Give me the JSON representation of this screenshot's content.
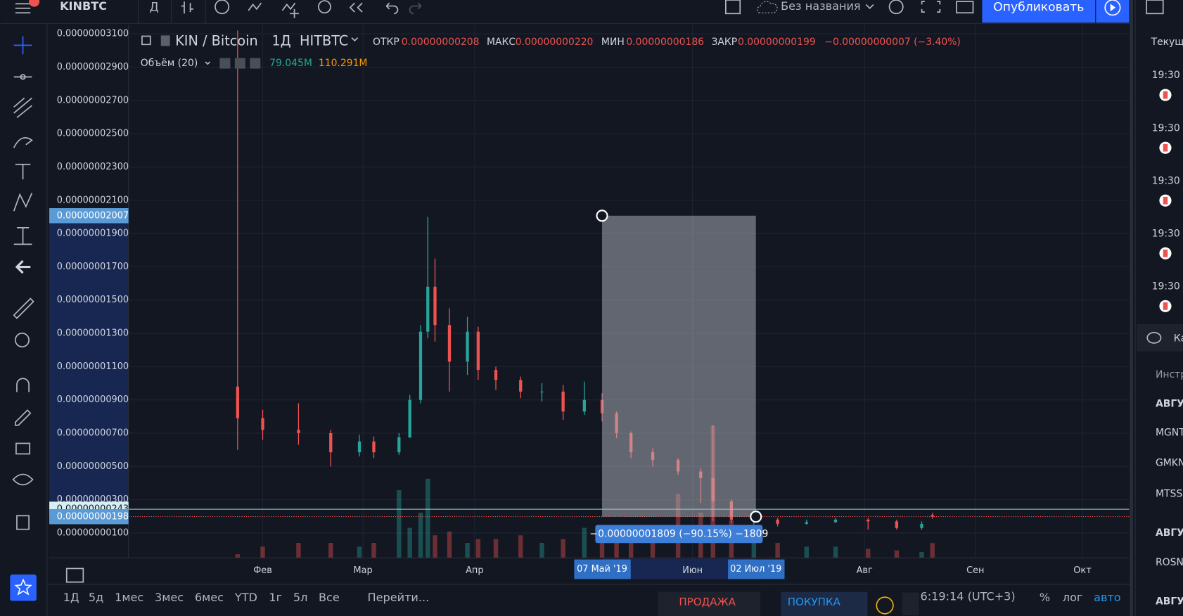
{
  "toolbar": {
    "symbol": "KINBTC",
    "interval": "Д",
    "layout_name": "Без названия",
    "publish": "Опубликовать"
  },
  "sidebar": {
    "header": "Текущ",
    "events": [
      "19:30",
      "19:30",
      "19:30",
      "19:30",
      "19:30"
    ],
    "section": "Ка",
    "column": "Инстр",
    "list": [
      "АВГУ",
      "MGNT",
      "GMKN",
      "MTSS",
      "АВГУ",
      "ROSN",
      "АВГУ"
    ]
  },
  "bottom_bar": {
    "ranges": [
      "1Д",
      "5д",
      "1мес",
      "3мес",
      "6мес",
      "YTD",
      "1г",
      "5л",
      "Все"
    ],
    "goto": "Перейти...",
    "sell": "ПРОДАЖА",
    "buy": "ПОКУПКА",
    "clock": "6:19:14 (UTC+3)",
    "percent": "%",
    "log": "лог",
    "auto": "авто"
  },
  "chart_data": {
    "type": "candlestick",
    "symbol": "KIN / Bitcoin",
    "interval": "1Д",
    "exchange": "HITBTC",
    "legend": {
      "open_label": "ОТКР",
      "open": "0.00000000208",
      "high_label": "МАКС",
      "high": "0.00000000220",
      "low_label": "МИН",
      "low": "0.00000000186",
      "close_label": "ЗАКР",
      "close": "0.00000000199",
      "change": "−0.00000000007 (−3.40%)"
    },
    "volume_label": "Объём (20)",
    "volume_value": "79.045M",
    "volume_ma": "110.291M",
    "x": [
      "2019-01-25",
      "2019-02-01",
      "2019-02-11",
      "2019-02-20",
      "2019-02-28",
      "2019-03-04",
      "2019-03-11",
      "2019-03-14",
      "2019-03-17",
      "2019-03-19",
      "2019-03-21",
      "2019-03-25",
      "2019-03-30",
      "2019-04-02",
      "2019-04-07",
      "2019-04-14",
      "2019-04-20",
      "2019-04-26",
      "2019-05-02",
      "2019-05-07",
      "2019-05-11",
      "2019-05-15",
      "2019-05-21",
      "2019-05-28",
      "2019-06-05",
      "2019-06-11",
      "2019-06-20",
      "2019-07-01",
      "2019-07-08",
      "2019-07-16",
      "2019-07-24",
      "2019-08-02",
      "2019-08-10",
      "2019-08-17",
      "2019-08-20"
    ],
    "open": [
      9.8e-09,
      7.9e-09,
      7.2e-09,
      7e-09,
      5.85e-09,
      6.5e-09,
      5.85e-09,
      6.75e-09,
      9e-09,
      1.31e-08,
      1.58e-08,
      1.35e-08,
      1.13e-08,
      1.31e-08,
      1.08e-08,
      1.02e-08,
      9.5e-09,
      9.5e-09,
      8.3e-09,
      9e-09,
      8.2e-09,
      7e-09,
      5.85e-09,
      5.4e-09,
      4.7e-09,
      4.3e-09,
      2.9e-09,
      1.8e-09,
      1.8e-09,
      1.55e-09,
      1.65e-09,
      1.8e-09,
      1.7e-09,
      1.3e-09,
      2.08e-09
    ],
    "high": [
      3.12e-08,
      8.4e-09,
      8.8e-09,
      7.2e-09,
      6.9e-09,
      6.8e-09,
      7e-09,
      9.3e-09,
      1.35e-08,
      2e-08,
      1.75e-08,
      1.45e-08,
      1.4e-08,
      1.34e-08,
      1.1e-08,
      1.04e-08,
      1e-08,
      9.9e-09,
      1.01e-08,
      9.4e-09,
      8.3e-09,
      7.1e-09,
      6.1e-09,
      5.5e-09,
      4.9e-09,
      7.5e-09,
      3e-09,
      2.2e-09,
      1.9e-09,
      1.8e-09,
      1.9e-09,
      1.9e-09,
      1.8e-09,
      1.7e-09,
      2.2e-09
    ],
    "low": [
      6e-09,
      6.6e-09,
      6.3e-09,
      5e-09,
      5.6e-09,
      5.5e-09,
      5.7e-09,
      6.7e-09,
      8.8e-09,
      1.27e-08,
      1.25e-08,
      9.5e-09,
      1.05e-08,
      1.02e-08,
      9.6e-09,
      9.1e-09,
      8.9e-09,
      7.8e-09,
      8.1e-09,
      7.7e-09,
      6.7e-09,
      5.5e-09,
      5e-09,
      4.5e-09,
      2.8e-09,
      1.7e-09,
      1.6e-09,
      1.5e-09,
      1.4e-09,
      1.5e-09,
      1.6e-09,
      1.2e-09,
      1.2e-09,
      1.2e-09,
      1.86e-09
    ],
    "close": [
      7.9e-09,
      7.2e-09,
      7e-09,
      5.85e-09,
      6.5e-09,
      5.85e-09,
      6.75e-09,
      9e-09,
      1.31e-08,
      1.58e-08,
      1.35e-08,
      1.13e-08,
      1.31e-08,
      1.08e-08,
      1.02e-08,
      9.5e-09,
      9.5e-09,
      8.3e-09,
      9e-09,
      8.2e-09,
      7e-09,
      5.85e-09,
      5.4e-09,
      4.7e-09,
      4.3e-09,
      2.9e-09,
      1.8e-09,
      1.8e-09,
      1.55e-09,
      1.65e-09,
      1.8e-09,
      1.7e-09,
      1.3e-09,
      1.55e-09,
      1.99e-09
    ],
    "volume": [
      20000000,
      60000000,
      80000000,
      80000000,
      60000000,
      80000000,
      360000000,
      160000000,
      240000000,
      420000000,
      120000000,
      140000000,
      80000000,
      100000000,
      100000000,
      120000000,
      80000000,
      100000000,
      160000000,
      140000000,
      80000000,
      100000000,
      100000000,
      340000000,
      240000000,
      700000000,
      200000000,
      160000000,
      80000000,
      60000000,
      60000000,
      48000000,
      40000000,
      32000000,
      79045000
    ],
    "up_color": "#26a69a",
    "down_color": "#ef5350",
    "ylim": [
      -5e-10,
      3.154e-08
    ],
    "yticks": [
      {
        "value": 3.1e-08,
        "label": "0.00000003100"
      },
      {
        "value": 2.9e-08,
        "label": "0.00000002900"
      },
      {
        "value": 2.7e-08,
        "label": "0.00000002700"
      },
      {
        "value": 2.5e-08,
        "label": "0.00000002500"
      },
      {
        "value": 2.3e-08,
        "label": "0.00000002300"
      },
      {
        "value": 2.1e-08,
        "label": "0.00000002100"
      },
      {
        "value": 1.9e-08,
        "label": "0.00000001900"
      },
      {
        "value": 1.7e-08,
        "label": "0.00000001700"
      },
      {
        "value": 1.5e-08,
        "label": "0.00000001500"
      },
      {
        "value": 1.3e-08,
        "label": "0.00000001300"
      },
      {
        "value": 1.1e-08,
        "label": "0.00000001100"
      },
      {
        "value": 9e-09,
        "label": "0.00000000900"
      },
      {
        "value": 7e-09,
        "label": "0.00000000700"
      },
      {
        "value": 5e-09,
        "label": "0.00000000500"
      },
      {
        "value": 3e-09,
        "label": "0.00000000300"
      },
      {
        "value": 1e-09,
        "label": "0.00000000100"
      }
    ],
    "volume_ylim": [
      0,
      800000000
    ],
    "xticks": [
      {
        "value": "2019-02-01",
        "label": "Фев"
      },
      {
        "value": "2019-03-01",
        "label": "Мар"
      },
      {
        "value": "2019-04-01",
        "label": "Апр"
      },
      {
        "value": "2019-06-01",
        "label": "Июн"
      },
      {
        "value": "2019-08-01",
        "label": "Авг"
      },
      {
        "value": "2019-09-01",
        "label": "Сен"
      },
      {
        "value": "2019-10-01",
        "label": "Окт"
      }
    ],
    "measure": {
      "from": {
        "date": "2019-05-07",
        "date_label": "07 Май '19",
        "price": 2.007e-08,
        "price_label": "0.00000002007"
      },
      "to": {
        "date": "2019-07-02",
        "date_label": "02 Июл '19",
        "price": 1.98e-09,
        "price_label": "0.00000000198"
      },
      "label": "−0.00000001809 (−90.15%) −1809"
    },
    "crosshair": {
      "value": 2.43e-09,
      "label": "0.00000000243"
    },
    "grid": true
  }
}
